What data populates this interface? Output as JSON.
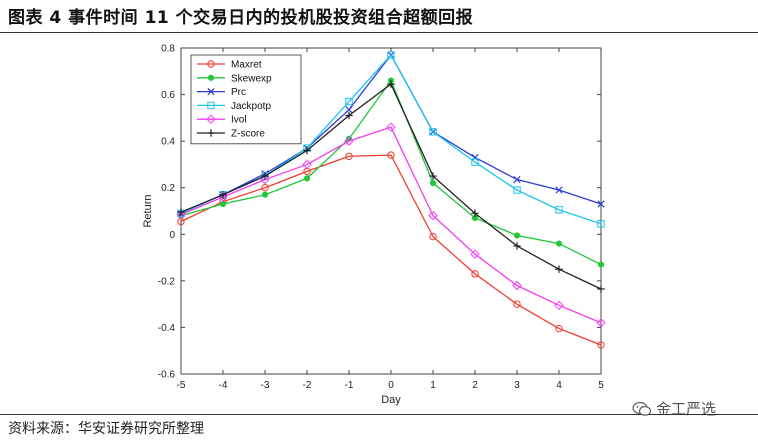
{
  "figure": {
    "title": "图表 4 事件时间 11 个交易日内的投机股投资组合超额回报",
    "source": "资料来源：华安证券研究所整理",
    "brand_text": "金工严选"
  },
  "chart_data": {
    "type": "line",
    "xlabel": "Day",
    "ylabel": "Return",
    "x": [
      -5,
      -4,
      -3,
      -2,
      -1,
      0,
      1,
      2,
      3,
      4,
      5
    ],
    "xlim": [
      -5,
      5
    ],
    "ylim": [
      -0.6,
      0.8
    ],
    "yticks": [
      -0.6,
      -0.4,
      -0.2,
      0,
      0.2,
      0.4,
      0.6,
      0.8
    ],
    "ytick_labels": [
      "-0.6",
      "-0.4",
      "-0.2",
      "0",
      "0.2",
      "0.4",
      "0.6",
      "0.8"
    ],
    "xtick_labels": [
      "-5",
      "-4",
      "-3",
      "-2",
      "-1",
      "0",
      "1",
      "2",
      "3",
      "4",
      "5"
    ],
    "grid": false,
    "legend_position": "top-left",
    "series": [
      {
        "name": "Maxret",
        "color": "#f03c2e",
        "marker": "circle",
        "values": [
          0.055,
          0.14,
          0.2,
          0.27,
          0.335,
          0.34,
          -0.01,
          -0.17,
          -0.3,
          -0.405,
          -0.475
        ]
      },
      {
        "name": "Skewexp",
        "color": "#22c83a",
        "marker": "dot",
        "values": [
          0.08,
          0.13,
          0.17,
          0.24,
          0.41,
          0.66,
          0.22,
          0.07,
          -0.005,
          -0.04,
          -0.13
        ]
      },
      {
        "name": "Prc",
        "color": "#2e3bd8",
        "marker": "x",
        "values": [
          0.09,
          0.17,
          0.26,
          0.37,
          0.535,
          0.77,
          0.44,
          0.33,
          0.235,
          0.19,
          0.13
        ]
      },
      {
        "name": "Jackpotp",
        "color": "#18c6ee",
        "marker": "square",
        "values": [
          0.09,
          0.17,
          0.25,
          0.37,
          0.57,
          0.77,
          0.44,
          0.31,
          0.19,
          0.105,
          0.045
        ]
      },
      {
        "name": "Ivol",
        "color": "#f23cf2",
        "marker": "diamond",
        "values": [
          0.085,
          0.16,
          0.235,
          0.3,
          0.4,
          0.46,
          0.08,
          -0.085,
          -0.22,
          -0.305,
          -0.38
        ]
      },
      {
        "name": "Z-score",
        "color": "#222222",
        "marker": "plus",
        "values": [
          0.095,
          0.17,
          0.25,
          0.36,
          0.51,
          0.645,
          0.25,
          0.09,
          -0.05,
          -0.15,
          -0.235
        ]
      }
    ]
  }
}
